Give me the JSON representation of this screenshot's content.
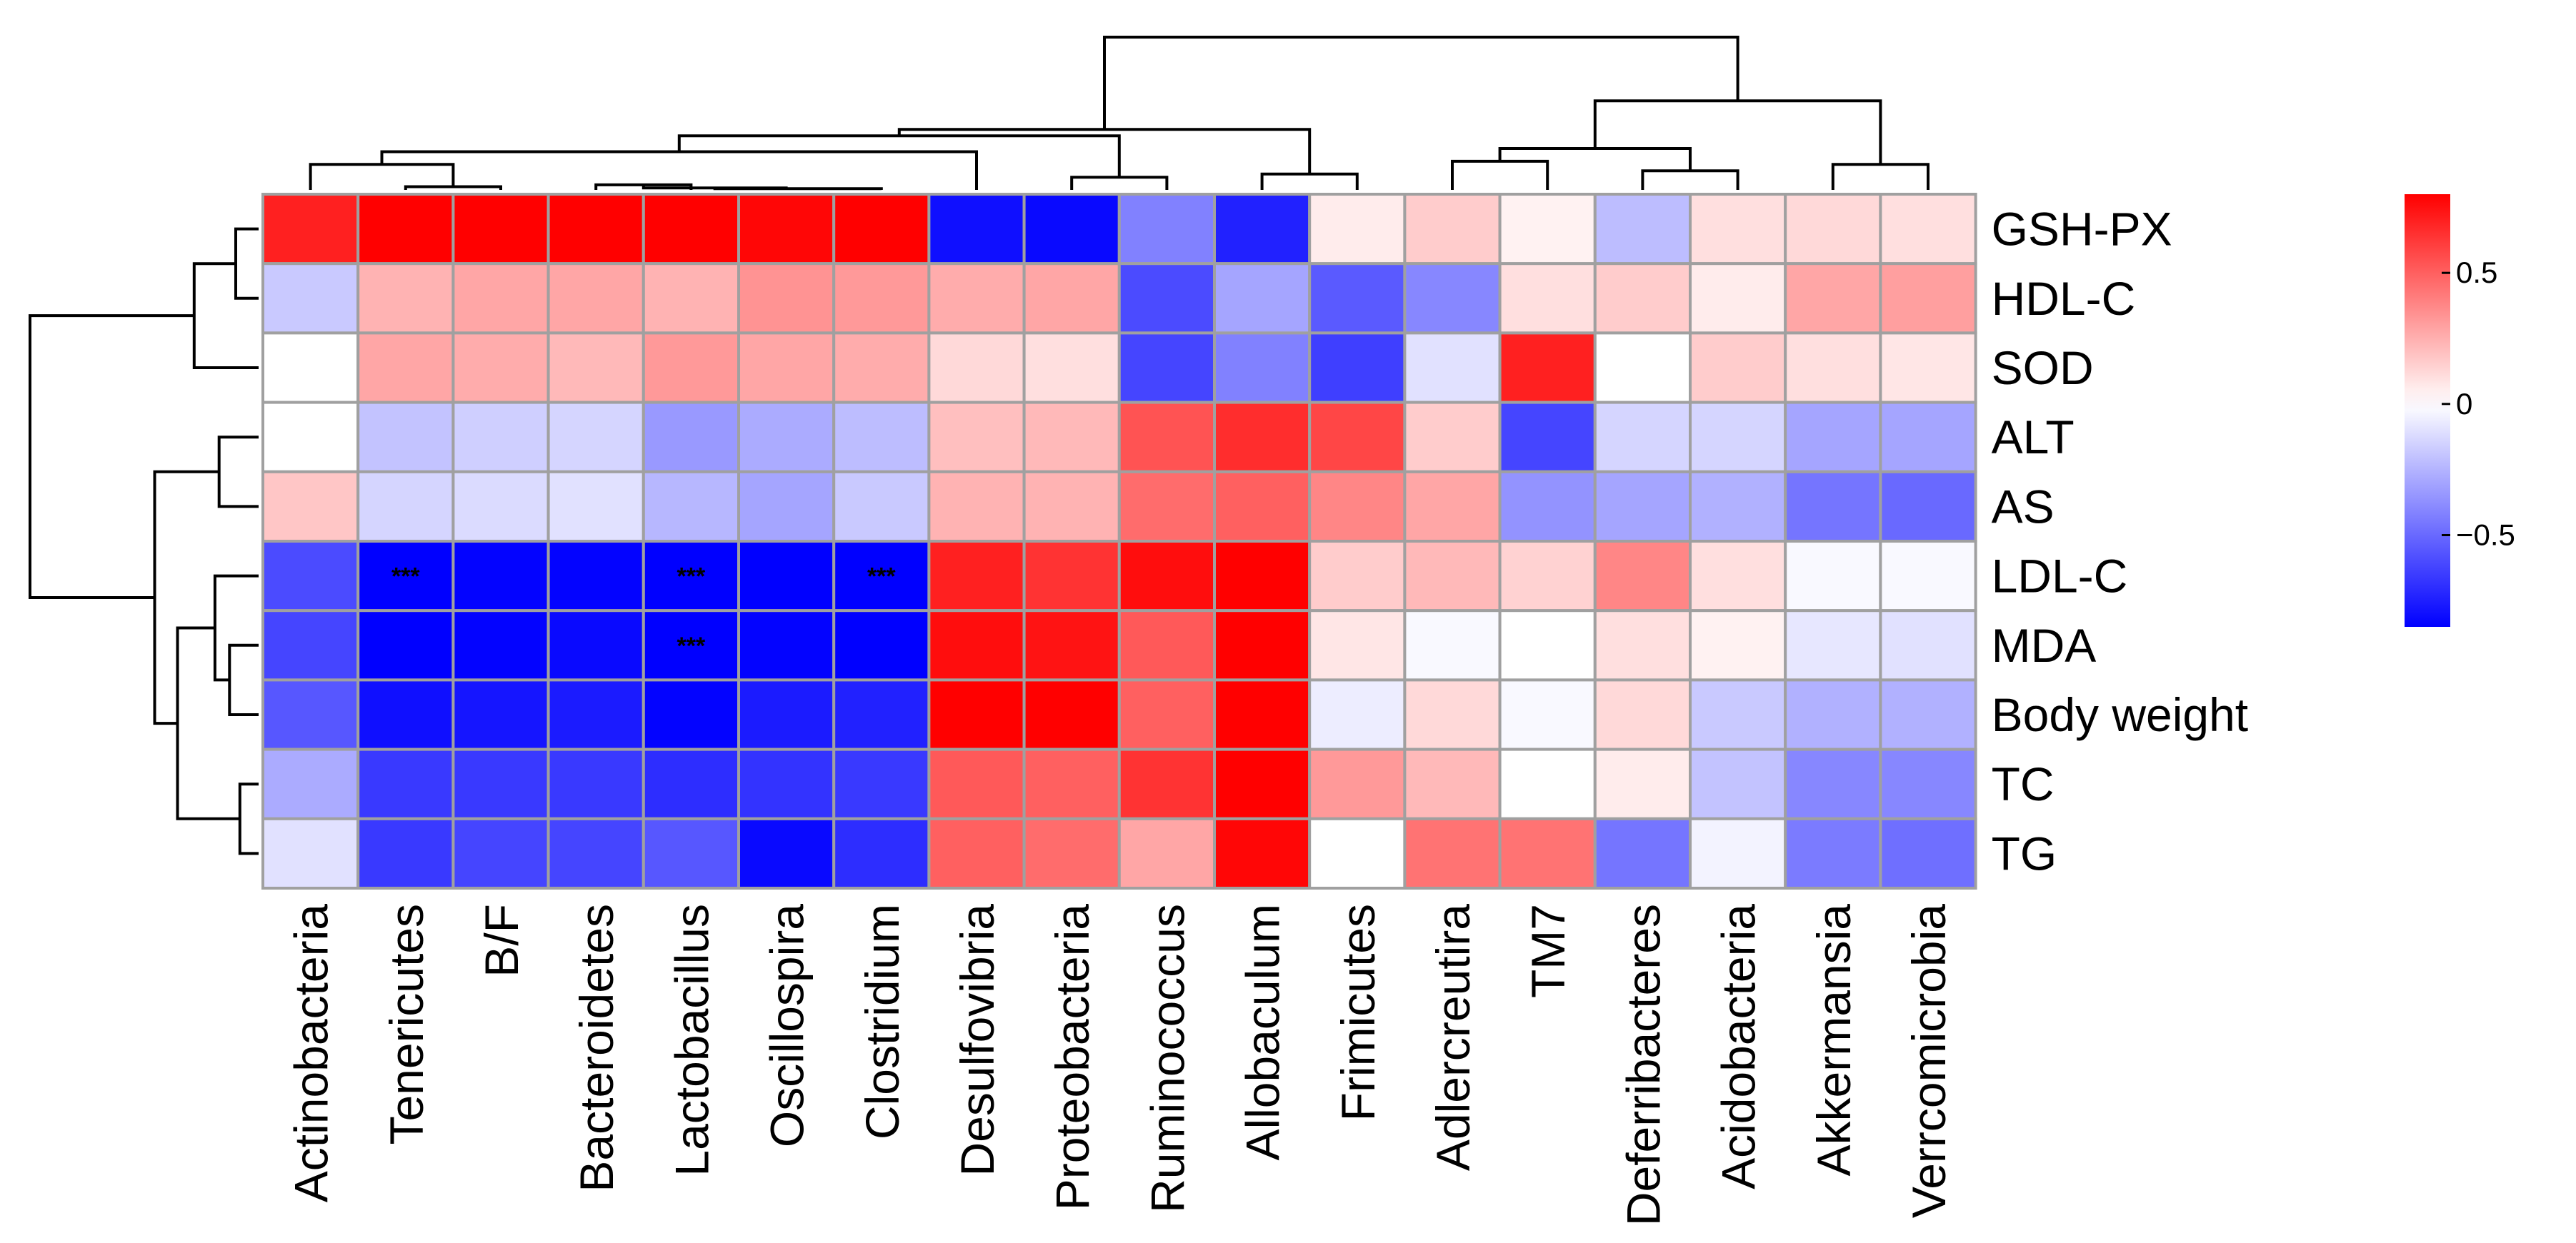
{
  "chart_data": {
    "type": "heatmap",
    "title": "",
    "xlabel": "",
    "ylabel": "",
    "rows": [
      "GSH-PX",
      "HDL-C",
      "SOD",
      "ALT",
      "AS",
      "LDL-C",
      "MDA",
      "Body weight",
      "TC",
      "TG"
    ],
    "columns": [
      "Actinobacteria",
      "Tenericutes",
      "B/F",
      "Bacteroidetes",
      "Lactobacillus",
      "Oscillospira",
      "Clostridium",
      "Desulfovibria",
      "Proteobacteria",
      "Ruminococcus",
      "Allobaculum",
      "Frimicutes",
      "Adlercreutira",
      "TM7",
      "Deferribacteres",
      "Acidobacteria",
      "Akkermansia",
      "Verrcomicrobia"
    ],
    "values": [
      [
        0.7,
        0.82,
        0.84,
        0.82,
        0.84,
        0.78,
        0.84,
        -0.8,
        -0.82,
        -0.42,
        -0.74,
        0.06,
        0.16,
        0.04,
        -0.22,
        0.1,
        0.12,
        0.1
      ],
      [
        -0.18,
        0.24,
        0.28,
        0.28,
        0.24,
        0.34,
        0.32,
        0.26,
        0.28,
        -0.6,
        -0.3,
        -0.55,
        -0.4,
        0.1,
        0.16,
        0.06,
        0.28,
        0.3
      ],
      [
        0.0,
        0.28,
        0.26,
        0.22,
        0.32,
        0.28,
        0.26,
        0.12,
        0.1,
        -0.62,
        -0.42,
        -0.64,
        -0.1,
        0.7,
        0.0,
        0.16,
        0.1,
        0.08
      ],
      [
        0.0,
        -0.2,
        -0.16,
        -0.14,
        -0.34,
        -0.28,
        -0.22,
        0.2,
        0.22,
        0.54,
        0.66,
        0.58,
        0.16,
        -0.62,
        -0.14,
        -0.14,
        -0.3,
        -0.3
      ],
      [
        0.18,
        -0.14,
        -0.12,
        -0.1,
        -0.24,
        -0.3,
        -0.18,
        0.24,
        0.24,
        0.46,
        0.5,
        0.38,
        0.28,
        -0.36,
        -0.3,
        -0.26,
        -0.46,
        -0.5
      ],
      [
        -0.6,
        -0.86,
        -0.84,
        -0.84,
        -0.86,
        -0.86,
        -0.86,
        0.7,
        0.64,
        0.76,
        0.84,
        0.16,
        0.22,
        0.14,
        0.38,
        0.1,
        -0.02,
        -0.02
      ],
      [
        -0.62,
        -0.86,
        -0.84,
        -0.82,
        -0.86,
        -0.84,
        -0.86,
        0.76,
        0.74,
        0.52,
        0.88,
        0.08,
        -0.02,
        0.0,
        0.1,
        0.04,
        -0.08,
        -0.1
      ],
      [
        -0.56,
        -0.8,
        -0.78,
        -0.76,
        -0.84,
        -0.76,
        -0.74,
        0.86,
        0.88,
        0.5,
        0.84,
        -0.06,
        0.12,
        -0.02,
        0.12,
        -0.18,
        -0.26,
        -0.26
      ],
      [
        -0.28,
        -0.66,
        -0.66,
        -0.66,
        -0.7,
        -0.68,
        -0.66,
        0.52,
        0.5,
        0.64,
        0.84,
        0.32,
        0.22,
        0.0,
        0.06,
        -0.2,
        -0.4,
        -0.4
      ],
      [
        -0.1,
        -0.66,
        -0.62,
        -0.62,
        -0.56,
        -0.82,
        -0.7,
        0.5,
        0.46,
        0.28,
        0.78,
        0.0,
        0.44,
        0.44,
        -0.46,
        -0.04,
        -0.44,
        -0.48
      ]
    ],
    "significance": [
      {
        "row": "LDL-C",
        "column": "Tenericutes",
        "label": "***"
      },
      {
        "row": "LDL-C",
        "column": "Lactobacillus",
        "label": "***"
      },
      {
        "row": "LDL-C",
        "column": "Clostridium",
        "label": "***"
      },
      {
        "row": "MDA",
        "column": "Lactobacillus",
        "label": "***"
      }
    ],
    "color_scale": {
      "low": "#0000ff",
      "mid": "#ffffff",
      "high": "#ff0000",
      "range": [
        -0.85,
        0.8
      ],
      "ticks": [
        -0.5,
        0,
        0.5
      ],
      "tick_labels": [
        "−0.5",
        "0",
        "0.5"
      ]
    },
    "grid_color": "#a0a0a0",
    "row_dendrogram": [
      [
        0,
        1,
        0.22
      ],
      [
        10,
        2,
        0.62
      ],
      [
        3,
        4,
        0.38
      ],
      [
        8,
        9,
        0.18
      ],
      [
        6,
        7,
        0.28
      ],
      [
        5,
        14,
        0.42
      ],
      [
        13,
        15,
        0.78
      ],
      [
        12,
        16,
        1.0
      ],
      [
        11,
        17,
        2.2
      ]
    ],
    "column_dendrogram": [
      [
        1,
        2,
        0.05
      ],
      [
        3,
        4,
        0.08
      ],
      [
        19,
        5,
        0.03
      ],
      [
        20,
        6,
        0.02
      ],
      [
        0,
        18,
        0.4
      ],
      [
        22,
        7,
        0.6
      ],
      [
        8,
        9,
        0.2
      ],
      [
        10,
        11,
        0.25
      ],
      [
        12,
        13,
        0.45
      ],
      [
        14,
        15,
        0.3
      ],
      [
        16,
        17,
        0.4
      ],
      [
        24,
        23,
        0.85
      ],
      [
        26,
        27,
        0.65
      ],
      [
        25,
        29,
        0.95
      ],
      [
        28,
        30,
        1.4
      ],
      [
        31,
        32,
        2.4
      ]
    ]
  }
}
